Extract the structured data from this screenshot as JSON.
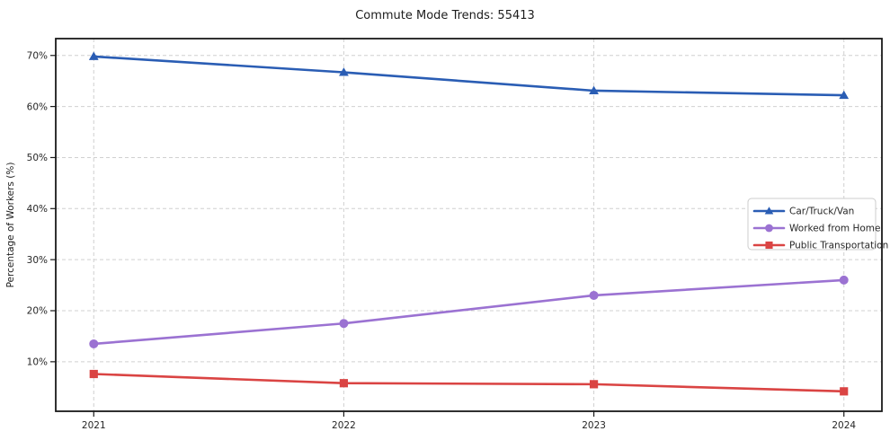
{
  "figure": {
    "background": "#ffffff"
  },
  "chart_data": {
    "type": "line",
    "title": "Commute Mode Trends: 55413",
    "xlabel": "",
    "ylabel": "Percentage of Workers (%)",
    "categories": [
      "2021",
      "2022",
      "2023",
      "2024"
    ],
    "series": [
      {
        "name": "Car/Truck/Van",
        "color": "#2a5db4",
        "marker": "triangle",
        "values": [
          69.8,
          66.7,
          63.1,
          62.2
        ]
      },
      {
        "name": "Worked from Home",
        "color": "#9b72d2",
        "marker": "circle",
        "values": [
          13.5,
          17.5,
          23.0,
          26.0
        ]
      },
      {
        "name": "Public Transportation",
        "color": "#da4443",
        "marker": "square",
        "values": [
          7.6,
          5.8,
          5.6,
          4.2
        ]
      }
    ],
    "ylim": [
      0.3,
      73.3
    ],
    "yticks": [
      10,
      20,
      30,
      40,
      50,
      60,
      70
    ],
    "ytick_labels": [
      "10%",
      "20%",
      "30%",
      "40%",
      "50%",
      "60%",
      "70%"
    ],
    "grid": true,
    "grid_style": "dashed",
    "legend_position": "center right"
  },
  "colors": {
    "grid": "#d0d0d0",
    "axis_spine": "#1a1a1a",
    "tick": "#1a1a1a",
    "tick_label": "#262626",
    "legend_border": "#cccccc",
    "legend_background": "#ffffff",
    "title": "#1c1c1c"
  }
}
